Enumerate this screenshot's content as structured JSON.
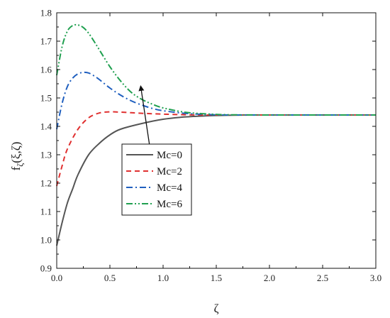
{
  "chart_data": {
    "type": "line",
    "title": "",
    "xlabel": "ζ",
    "ylabel_main": "f",
    "ylabel_sub": "ζ",
    "ylabel_args": "(ξ,ζ)",
    "xlim": [
      0,
      3.0
    ],
    "ylim": [
      0.9,
      1.8
    ],
    "xticks": [
      "0.0",
      "0.5",
      "1.0",
      "1.5",
      "2.0",
      "2.5",
      "3.0"
    ],
    "yticks": [
      "0.9",
      "1.0",
      "1.1",
      "1.2",
      "1.3",
      "1.4",
      "1.5",
      "1.6",
      "1.7",
      "1.8"
    ],
    "grid": false,
    "legend_position": "center",
    "annotation": "arrow pointing up-right across the curves, indicating increasing Mc",
    "series": [
      {
        "name": "Mc=0",
        "color": "#555555",
        "dash": "solid",
        "x": [
          0,
          0.05,
          0.1,
          0.15,
          0.2,
          0.3,
          0.4,
          0.5,
          0.6,
          0.8,
          1.0,
          1.2,
          1.4,
          1.6,
          1.8,
          2.0,
          2.5,
          3.0
        ],
        "y": [
          0.98,
          1.06,
          1.13,
          1.18,
          1.23,
          1.3,
          1.34,
          1.37,
          1.39,
          1.41,
          1.425,
          1.433,
          1.437,
          1.439,
          1.44,
          1.44,
          1.44,
          1.44
        ]
      },
      {
        "name": "Mc=2",
        "color": "#e03030",
        "dash": "dash",
        "x": [
          0,
          0.05,
          0.1,
          0.2,
          0.3,
          0.4,
          0.5,
          0.6,
          0.7,
          0.8,
          1.0,
          1.2,
          1.4,
          1.6,
          2.0,
          2.5,
          3.0
        ],
        "y": [
          1.19,
          1.26,
          1.32,
          1.39,
          1.43,
          1.447,
          1.451,
          1.45,
          1.448,
          1.446,
          1.443,
          1.441,
          1.44,
          1.44,
          1.44,
          1.44,
          1.44
        ]
      },
      {
        "name": "Mc=4",
        "color": "#1f5fbf",
        "dash": "dashdot",
        "x": [
          0,
          0.05,
          0.1,
          0.15,
          0.2,
          0.25,
          0.3,
          0.35,
          0.4,
          0.5,
          0.6,
          0.7,
          0.8,
          0.9,
          1.0,
          1.2,
          1.4,
          1.6,
          2.0,
          2.5,
          3.0
        ],
        "y": [
          1.39,
          1.48,
          1.54,
          1.57,
          1.585,
          1.59,
          1.588,
          1.578,
          1.565,
          1.535,
          1.51,
          1.49,
          1.475,
          1.463,
          1.455,
          1.446,
          1.442,
          1.44,
          1.44,
          1.44,
          1.44
        ]
      },
      {
        "name": "Mc=6",
        "color": "#20a050",
        "dash": "dashdotdot",
        "x": [
          0,
          0.05,
          0.1,
          0.15,
          0.2,
          0.25,
          0.3,
          0.35,
          0.4,
          0.5,
          0.6,
          0.7,
          0.8,
          0.9,
          1.0,
          1.2,
          1.4,
          1.6,
          2.0,
          2.5,
          3.0
        ],
        "y": [
          1.58,
          1.68,
          1.735,
          1.755,
          1.757,
          1.748,
          1.728,
          1.7,
          1.67,
          1.61,
          1.56,
          1.52,
          1.495,
          1.478,
          1.465,
          1.45,
          1.444,
          1.441,
          1.44,
          1.44,
          1.44
        ]
      }
    ]
  }
}
